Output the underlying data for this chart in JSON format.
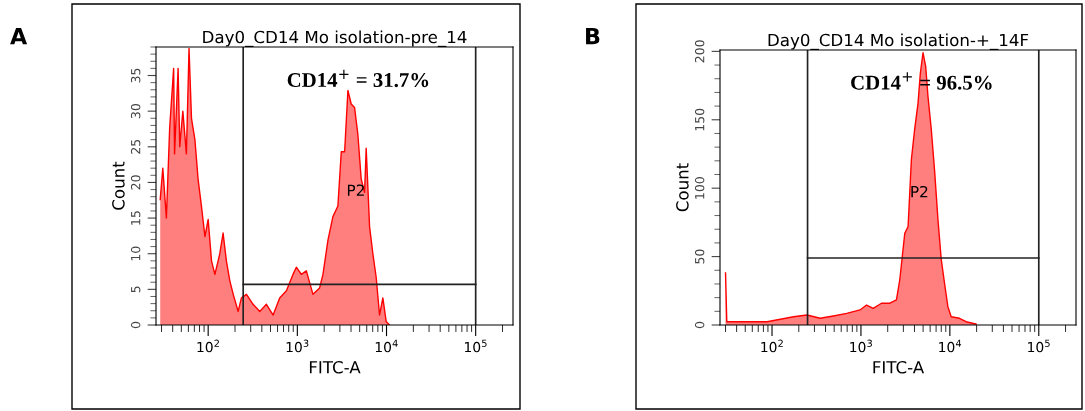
{
  "chart_data": [
    {
      "type": "area",
      "title": "Day0_CD14 Mo isolation-pre_14",
      "xlabel": "FITC-A",
      "ylabel": "Count",
      "log": "x",
      "xlim": [
        26,
        262144
      ],
      "xticks": [
        {
          "value": 100,
          "label": "10$^{2}$"
        },
        {
          "value": 1000,
          "label": "10$^{3}$"
        },
        {
          "value": 10000,
          "label": "10$^{4}$"
        },
        {
          "value": 100000,
          "label": "10$^{5}$"
        }
      ],
      "ylim": [
        0,
        39
      ],
      "yticks": [
        0,
        5,
        10,
        15,
        20,
        25,
        30,
        35
      ],
      "grid": false,
      "legend": false,
      "series": [
        {
          "color": "#ff0000",
          "x": [
            29,
            31,
            34,
            37,
            41,
            42,
            46,
            48,
            52,
            57,
            61,
            65,
            71,
            77,
            84,
            92,
            100,
            109,
            119,
            135,
            147,
            160,
            175,
            191,
            217,
            236,
            269,
            319,
            379,
            450,
            535,
            634,
            754,
            894,
            975,
            1109,
            1262,
            1497,
            1778,
            1938,
            2205,
            2507,
            2851,
            3111,
            3390,
            3693,
            4018,
            4385,
            4775,
            5200,
            5675,
            5918,
            6457,
            7031,
            7656,
            8356,
            9100,
            9910,
            10810
          ],
          "values": [
            17.6,
            22,
            15,
            27.6,
            36,
            24,
            36,
            25,
            30,
            24,
            38.8,
            29,
            26,
            20.5,
            16.7,
            12.4,
            14.8,
            9,
            7.1,
            10,
            12.9,
            9,
            6.2,
            4.3,
            1.9,
            3.8,
            4.3,
            2.9,
            1.9,
            2.9,
            1.4,
            3.8,
            4.8,
            7.1,
            8.1,
            7.1,
            7.6,
            4.3,
            5.2,
            7.1,
            11.9,
            15.2,
            16.7,
            24.3,
            24.3,
            32.9,
            31,
            30.5,
            26.7,
            20.5,
            18.6,
            24.8,
            13.8,
            10,
            6.7,
            1.4,
            3.8,
            0.5,
            0
          ]
        }
      ],
      "ref_lines": [
        {
          "axis": "x",
          "value": 247
        },
        {
          "axis": "x",
          "value": 100000
        },
        {
          "axis": "y",
          "value": 5.7
        }
      ],
      "annotations": [
        "A",
        "CD14$^{+}$ = 31.7%",
        "P2"
      ]
    },
    {
      "type": "area",
      "title": "Day0_CD14 Mo isolation-+_14F",
      "xlabel": "FITC-A",
      "ylabel": "Count",
      "log": "x",
      "xlim": [
        26,
        262144
      ],
      "xticks": [
        {
          "value": 100,
          "label": "10$^{2}$"
        },
        {
          "value": 1000,
          "label": "10$^{3}$"
        },
        {
          "value": 10000,
          "label": "10$^{4}$"
        },
        {
          "value": 100000,
          "label": "10$^{5}$"
        }
      ],
      "ylim": [
        0,
        201
      ],
      "yticks": [
        0,
        50,
        100,
        150,
        200
      ],
      "grid": false,
      "legend": false,
      "series": [
        {
          "color": "#ff0000",
          "x": [
            30,
            31,
            44,
            88,
            175,
            247,
            348,
            490,
            692,
            975,
            1157,
            1374,
            1702,
            2113,
            2507,
            2733,
            3111,
            3390,
            3693,
            4018,
            4385,
            4656,
            4989,
            5346,
            5675,
            6180,
            6730,
            7345,
            8000,
            8710,
            9500,
            10350,
            12830,
            15240,
            19720
          ],
          "values": [
            38,
            2.4,
            2.4,
            2.4,
            6,
            7.3,
            4.9,
            6.6,
            8.5,
            11,
            14.6,
            12.2,
            15.9,
            15.9,
            18.3,
            32.9,
            67,
            72,
            121,
            143,
            162,
            184,
            199,
            189,
            167,
            143,
            113,
            77,
            48,
            30.5,
            13.4,
            6,
            4.9,
            2.4,
            0.7
          ]
        }
      ],
      "ref_lines": [
        {
          "axis": "x",
          "value": 251
        },
        {
          "axis": "x",
          "value": 100000
        },
        {
          "axis": "y",
          "value": 49
        }
      ],
      "annotations": [
        "B",
        "CD14$^{+}$ = 96.5%",
        "P2"
      ]
    }
  ]
}
